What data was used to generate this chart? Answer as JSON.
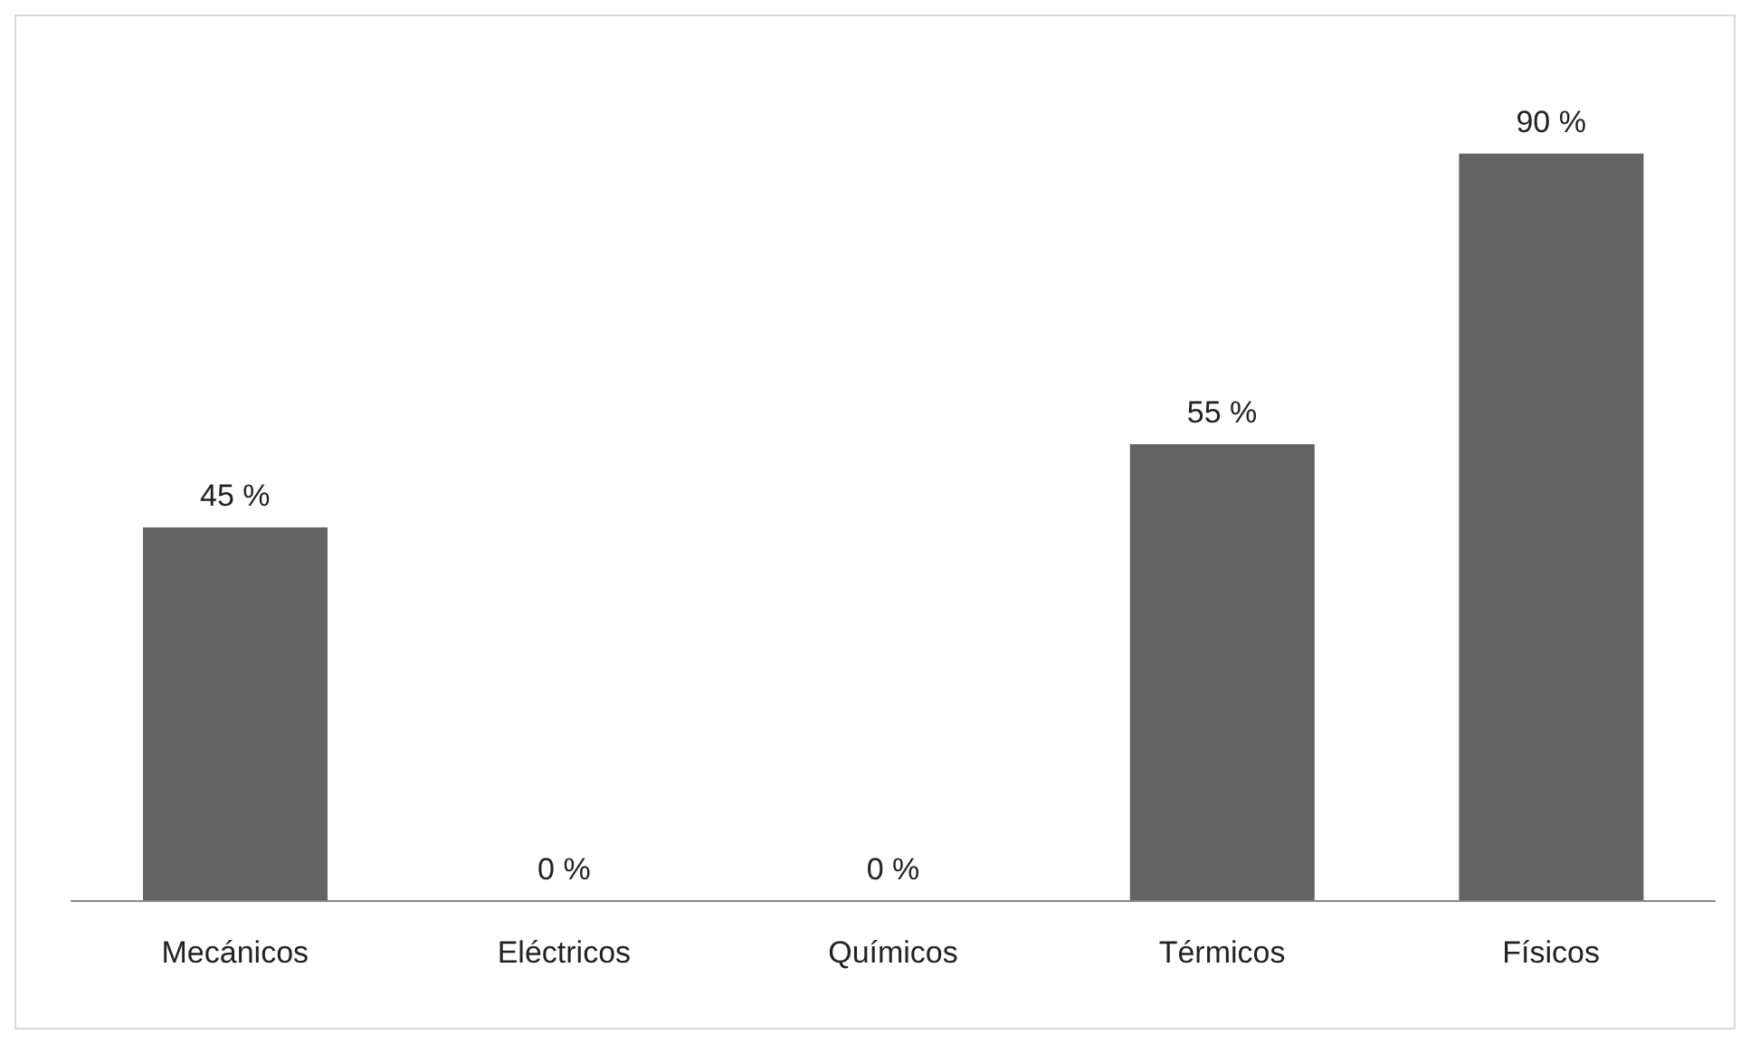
{
  "chart_data": {
    "type": "bar",
    "categories": [
      "Mecánicos",
      "Eléctricos",
      "Químicos",
      "Térmicos",
      "Físicos"
    ],
    "values": [
      45,
      0,
      0,
      55,
      90
    ],
    "value_labels": [
      "45 %",
      "0 %",
      "0 %",
      "55 %",
      "90 %"
    ],
    "color": "#636363",
    "grid": false,
    "legend": false
  }
}
